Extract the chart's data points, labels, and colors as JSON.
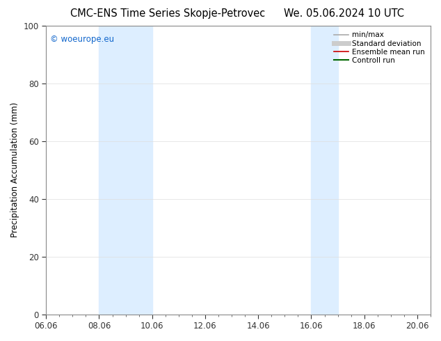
{
  "title_left": "CMC-ENS Time Series Skopje-Petrovec",
  "title_right": "We. 05.06.2024 10 UTC",
  "ylabel": "Precipitation Accumulation (mm)",
  "xlabel": "",
  "xlim": [
    6.0,
    20.5
  ],
  "ylim": [
    0,
    100
  ],
  "yticks": [
    0,
    20,
    40,
    60,
    80,
    100
  ],
  "xtick_labels": [
    "06.06",
    "08.06",
    "10.06",
    "12.06",
    "14.06",
    "16.06",
    "18.06",
    "20.06"
  ],
  "xtick_positions": [
    6.0,
    8.0,
    10.0,
    12.0,
    14.0,
    16.0,
    18.0,
    20.0
  ],
  "shaded_bands": [
    {
      "x_start": 8.0,
      "x_end": 10.0
    },
    {
      "x_start": 16.0,
      "x_end": 17.0
    }
  ],
  "shade_color": "#ddeeff",
  "watermark_text": "© woeurope.eu",
  "watermark_color": "#1166cc",
  "legend_entries": [
    {
      "label": "min/max",
      "color": "#aaaaaa",
      "linewidth": 1.2,
      "linestyle": "-"
    },
    {
      "label": "Standard deviation",
      "color": "#cccccc",
      "linewidth": 5,
      "linestyle": "-"
    },
    {
      "label": "Ensemble mean run",
      "color": "#cc0000",
      "linewidth": 1.2,
      "linestyle": "-"
    },
    {
      "label": "Controll run",
      "color": "#006600",
      "linewidth": 1.5,
      "linestyle": "-"
    }
  ],
  "bg_color": "#ffffff",
  "plot_bg_color": "#ffffff",
  "spine_color": "#888888",
  "grid_color": "#dddddd",
  "title_fontsize": 10.5,
  "label_fontsize": 8.5,
  "tick_fontsize": 8.5,
  "legend_fontsize": 7.5,
  "watermark_fontsize": 8.5
}
